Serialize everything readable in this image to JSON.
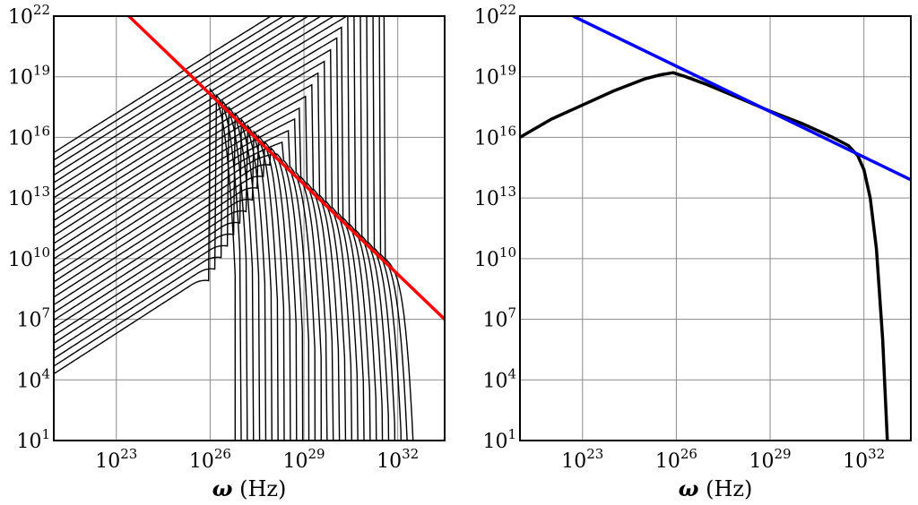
{
  "chart_data": [
    {
      "type": "line",
      "xlabel_symbol": "ω",
      "xlabel_unit": " (Hz)",
      "xscale": "log",
      "yscale": "log",
      "xlim_exponent": [
        21,
        33.5
      ],
      "ylim_exponent": [
        1,
        22
      ],
      "x_ticks": [
        "23",
        "26",
        "29",
        "32"
      ],
      "y_ticks": [
        "1",
        "4",
        "7",
        "10",
        "13",
        "16",
        "19",
        "22"
      ],
      "tick_base": "10",
      "grid": true,
      "series": [
        {
          "style": "family of curves",
          "color": "#000000",
          "count": 30,
          "low_freq_start": {
            "x_exponent": 21,
            "y_exponent_range": [
              4.3,
              15.3
            ]
          },
          "low_freq_slope": 1,
          "peak_of_first_curve": {
            "x_exponent": 26,
            "y_exponent": 18.4
          },
          "high_freq_envelope_slope": -1.5,
          "cutoff_x_exponent_range": [
            26.8,
            32.5
          ]
        },
        {
          "style": "power-law envelope",
          "color": "#ff0000",
          "points": [
            [
              23.4,
              22
            ],
            [
              33.5,
              7.0
            ]
          ]
        }
      ]
    },
    {
      "type": "line",
      "xlabel_symbol": "ω",
      "xlabel_unit": " (Hz)",
      "xscale": "log",
      "yscale": "log",
      "xlim_exponent": [
        21,
        33.5
      ],
      "ylim_exponent": [
        1,
        22
      ],
      "x_ticks": [
        "23",
        "26",
        "29",
        "32"
      ],
      "y_ticks": [
        "1",
        "4",
        "7",
        "10",
        "13",
        "16",
        "19",
        "22"
      ],
      "tick_base": "10",
      "grid": true,
      "series": [
        {
          "style": "spectrum",
          "color": "#000000",
          "points": [
            [
              21,
              16.0
            ],
            [
              22,
              16.9
            ],
            [
              23,
              17.6
            ],
            [
              24,
              18.3
            ],
            [
              25,
              18.9
            ],
            [
              25.5,
              19.1
            ],
            [
              25.9,
              19.2
            ],
            [
              26.3,
              19.0
            ],
            [
              27,
              18.6
            ],
            [
              28,
              17.95
            ],
            [
              29,
              17.3
            ],
            [
              30,
              16.7
            ],
            [
              31,
              16.0
            ],
            [
              31.5,
              15.6
            ],
            [
              31.8,
              15.1
            ],
            [
              32.0,
              14.4
            ],
            [
              32.2,
              13.0
            ],
            [
              32.4,
              10.5
            ],
            [
              32.6,
              6.0
            ],
            [
              32.75,
              1.0
            ]
          ]
        },
        {
          "style": "power-law envelope",
          "color": "#0000ff",
          "points": [
            [
              22.7,
              22
            ],
            [
              33.5,
              13.9
            ]
          ]
        }
      ]
    }
  ]
}
